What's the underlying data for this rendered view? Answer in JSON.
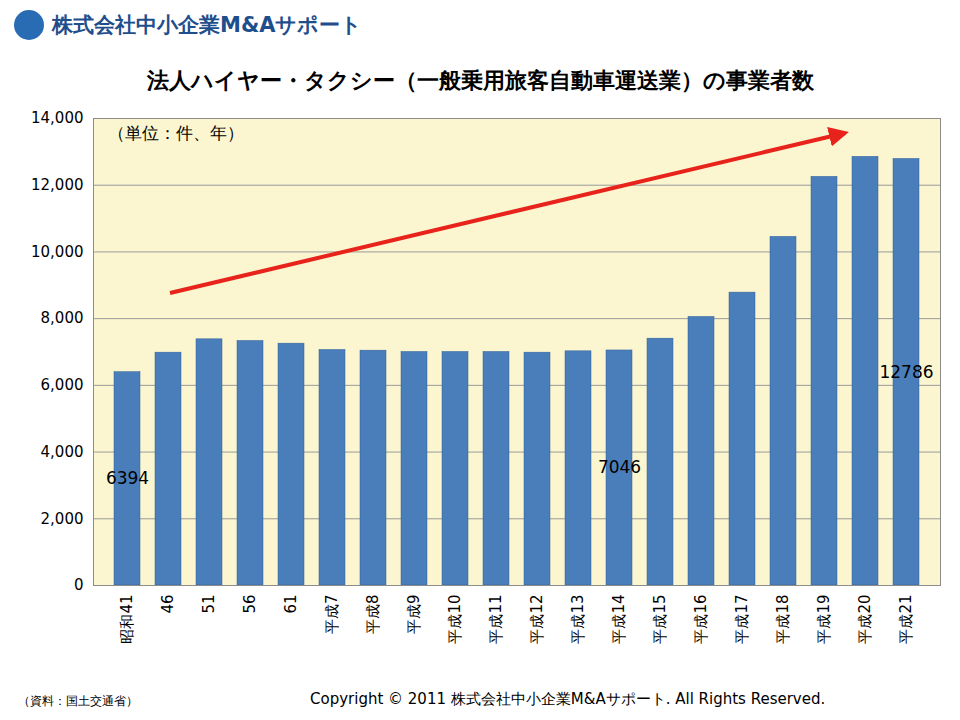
{
  "chart_data": {
    "type": "bar",
    "header": "株式会社中小企業M&Aサポート",
    "title": "法人ハイヤー・タクシー（一般乗用旅客自動車運送業）の事業者数",
    "annotations": [
      "（単位：件、年）"
    ],
    "source": "（資料：国土交通省）",
    "copyright": "Copyright © 2011 株式会社中小企業M&Aサポート. All Rights Reserved.",
    "categories": [
      "昭和41",
      "46",
      "51",
      "56",
      "61",
      "平成7",
      "平成8",
      "平成9",
      "平成10",
      "平成11",
      "平成12",
      "平成13",
      "平成14",
      "平成15",
      "平成16",
      "平成17",
      "平成18",
      "平成19",
      "平成20",
      "平成21"
    ],
    "values": [
      6394,
      6980,
      7380,
      7330,
      7250,
      7060,
      7040,
      7000,
      7000,
      7000,
      6980,
      7020,
      7046,
      7400,
      8050,
      8780,
      10450,
      12250,
      12850,
      12786
    ],
    "data_labels": true,
    "value_labels": [
      "6394",
      null,
      null,
      null,
      null,
      null,
      null,
      null,
      null,
      null,
      null,
      null,
      "7046",
      null,
      null,
      null,
      null,
      null,
      null,
      "12786"
    ],
    "color": "#4a7ebb",
    "ylim": [
      0,
      14000
    ],
    "yticks": [
      0,
      2000,
      4000,
      6000,
      8000,
      10000,
      12000,
      14000
    ],
    "grid": true
  }
}
